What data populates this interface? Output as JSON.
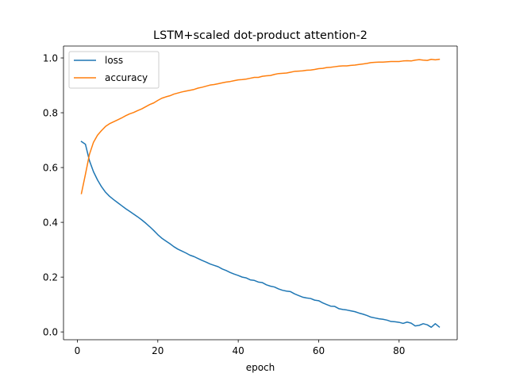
{
  "chart_data": {
    "type": "line",
    "title": "LSTM+scaled dot-product attention-2",
    "xlabel": "epoch",
    "ylabel": "",
    "xlim": [
      -3.45,
      94.45
    ],
    "ylim": [
      -0.0285,
      1.0435
    ],
    "xticks": [
      0,
      20,
      40,
      60,
      80
    ],
    "yticks": [
      0.0,
      0.2,
      0.4,
      0.6,
      0.8,
      1.0
    ],
    "xtick_labels": [
      "0",
      "20",
      "40",
      "60",
      "80"
    ],
    "ytick_labels": [
      "0.0",
      "0.2",
      "0.4",
      "0.6",
      "0.8",
      "1.0"
    ],
    "grid": false,
    "legend_position": "upper-left",
    "x": [
      1,
      2,
      3,
      4,
      5,
      6,
      7,
      8,
      9,
      10,
      11,
      12,
      13,
      14,
      15,
      16,
      17,
      18,
      19,
      20,
      21,
      22,
      23,
      24,
      25,
      26,
      27,
      28,
      29,
      30,
      31,
      32,
      33,
      34,
      35,
      36,
      37,
      38,
      39,
      40,
      41,
      42,
      43,
      44,
      45,
      46,
      47,
      48,
      49,
      50,
      51,
      52,
      53,
      54,
      55,
      56,
      57,
      58,
      59,
      60,
      61,
      62,
      63,
      64,
      65,
      66,
      67,
      68,
      69,
      70,
      71,
      72,
      73,
      74,
      75,
      76,
      77,
      78,
      79,
      80,
      81,
      82,
      83,
      84,
      85,
      86,
      87,
      88,
      89,
      90
    ],
    "series": [
      {
        "name": "loss",
        "color": "#1f77b4",
        "values": [
          0.695,
          0.685,
          0.625,
          0.585,
          0.555,
          0.53,
          0.51,
          0.495,
          0.483,
          0.472,
          0.461,
          0.45,
          0.44,
          0.43,
          0.42,
          0.409,
          0.397,
          0.384,
          0.37,
          0.355,
          0.342,
          0.332,
          0.322,
          0.311,
          0.302,
          0.295,
          0.288,
          0.28,
          0.275,
          0.268,
          0.261,
          0.255,
          0.248,
          0.243,
          0.238,
          0.23,
          0.224,
          0.217,
          0.211,
          0.206,
          0.2,
          0.197,
          0.19,
          0.188,
          0.182,
          0.18,
          0.172,
          0.167,
          0.164,
          0.157,
          0.152,
          0.149,
          0.147,
          0.139,
          0.133,
          0.127,
          0.124,
          0.122,
          0.116,
          0.114,
          0.106,
          0.1,
          0.094,
          0.093,
          0.085,
          0.082,
          0.08,
          0.077,
          0.074,
          0.069,
          0.065,
          0.06,
          0.054,
          0.051,
          0.048,
          0.046,
          0.043,
          0.038,
          0.037,
          0.035,
          0.031,
          0.036,
          0.032,
          0.022,
          0.024,
          0.03,
          0.026,
          0.017,
          0.03,
          0.018
        ]
      },
      {
        "name": "accuracy",
        "color": "#ff7f0e",
        "values": [
          0.505,
          0.575,
          0.648,
          0.692,
          0.718,
          0.735,
          0.75,
          0.76,
          0.767,
          0.774,
          0.781,
          0.789,
          0.796,
          0.801,
          0.808,
          0.814,
          0.822,
          0.83,
          0.836,
          0.845,
          0.853,
          0.858,
          0.862,
          0.868,
          0.872,
          0.876,
          0.879,
          0.882,
          0.885,
          0.89,
          0.893,
          0.897,
          0.901,
          0.903,
          0.906,
          0.909,
          0.912,
          0.914,
          0.917,
          0.92,
          0.921,
          0.923,
          0.926,
          0.929,
          0.929,
          0.933,
          0.935,
          0.936,
          0.94,
          0.943,
          0.944,
          0.945,
          0.948,
          0.951,
          0.952,
          0.953,
          0.955,
          0.956,
          0.958,
          0.961,
          0.962,
          0.965,
          0.966,
          0.968,
          0.97,
          0.971,
          0.971,
          0.973,
          0.974,
          0.976,
          0.978,
          0.98,
          0.983,
          0.984,
          0.985,
          0.985,
          0.986,
          0.987,
          0.987,
          0.987,
          0.989,
          0.99,
          0.989,
          0.992,
          0.994,
          0.992,
          0.991,
          0.995,
          0.993,
          0.995
        ]
      }
    ]
  }
}
